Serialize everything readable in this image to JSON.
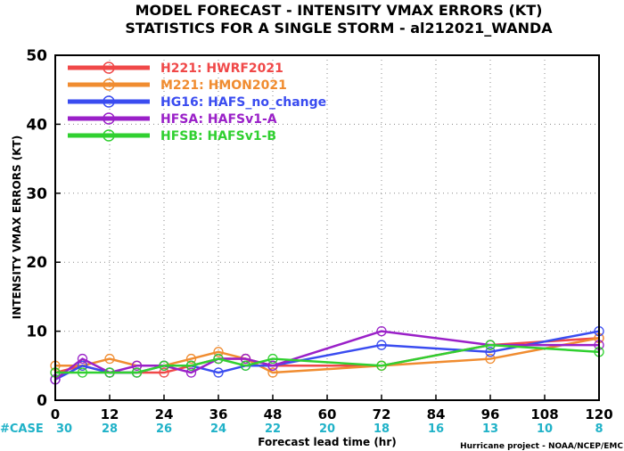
{
  "title_line1": "MODEL FORECAST - INTENSITY VMAX ERRORS (KT)",
  "title_line2": "STATISTICS FOR A SINGLE STORM - al212021_WANDA",
  "ylabel": "INTENSITY VMAX ERRORS (KT)",
  "xlabel": "Forecast lead time (hr)",
  "credit": "Hurricane project - NOAA/NCEP/EMC",
  "case_label": "#CASE",
  "case_color": "#20b2c8",
  "chart_data": {
    "type": "line",
    "xlabel": "Forecast lead time (hr)",
    "ylabel": "INTENSITY VMAX ERRORS (KT)",
    "xlim": [
      0,
      120
    ],
    "ylim": [
      0,
      50
    ],
    "x_ticks": [
      0,
      12,
      24,
      36,
      48,
      60,
      72,
      84,
      96,
      108,
      120
    ],
    "y_ticks": [
      0,
      10,
      20,
      30,
      40,
      50
    ],
    "grid": true,
    "legend_position": "top-left",
    "case_counts": [
      {
        "x": 0,
        "n": "30"
      },
      {
        "x": 12,
        "n": "28"
      },
      {
        "x": 24,
        "n": "26"
      },
      {
        "x": 36,
        "n": "24"
      },
      {
        "x": 48,
        "n": "22"
      },
      {
        "x": 60,
        "n": "20"
      },
      {
        "x": 72,
        "n": "18"
      },
      {
        "x": 84,
        "n": "16"
      },
      {
        "x": 96,
        "n": "13"
      },
      {
        "x": 108,
        "n": "10"
      },
      {
        "x": 120,
        "n": "8"
      }
    ],
    "series": [
      {
        "name": "H221: HWRF2021",
        "color": "#f04848",
        "x": [
          0,
          6,
          12,
          18,
          24,
          30,
          36,
          42,
          48,
          72,
          96,
          120
        ],
        "y": [
          4,
          5,
          4,
          4,
          4,
          5,
          6,
          6,
          5,
          5,
          8,
          9
        ]
      },
      {
        "name": "M221: HMON2021",
        "color": "#f08c30",
        "x": [
          0,
          6,
          12,
          18,
          24,
          30,
          36,
          42,
          48,
          72,
          96,
          120
        ],
        "y": [
          5,
          5,
          6,
          5,
          5,
          6,
          7,
          6,
          4,
          5,
          6,
          9
        ]
      },
      {
        "name": "HG16: HAFS_no_change",
        "color": "#3a4cf0",
        "x": [
          0,
          6,
          12,
          18,
          24,
          30,
          36,
          42,
          48,
          72,
          96,
          120
        ],
        "y": [
          3,
          5,
          4,
          4,
          5,
          5,
          4,
          5,
          5,
          8,
          7,
          10
        ]
      },
      {
        "name": "HFSA: HAFSv1-A",
        "color": "#9a20c8",
        "x": [
          0,
          6,
          12,
          18,
          24,
          30,
          36,
          42,
          48,
          72,
          96,
          120
        ],
        "y": [
          3,
          6,
          4,
          5,
          5,
          4,
          6,
          6,
          5,
          10,
          8,
          8
        ]
      },
      {
        "name": "HFSB: HAFSv1-B",
        "color": "#30d030",
        "x": [
          0,
          6,
          12,
          18,
          24,
          30,
          36,
          42,
          48,
          72,
          96,
          120
        ],
        "y": [
          4,
          4,
          4,
          4,
          5,
          5,
          6,
          5,
          6,
          5,
          8,
          7
        ]
      }
    ]
  }
}
